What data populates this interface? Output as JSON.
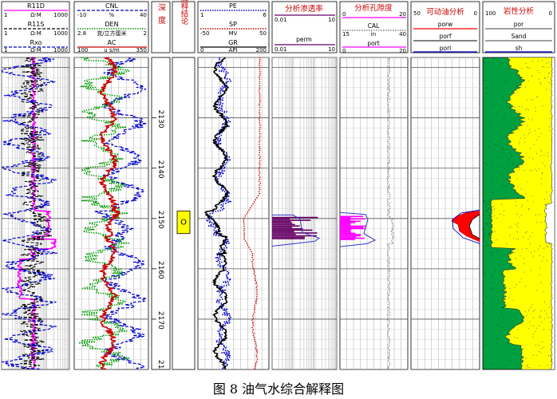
{
  "figure": {
    "caption": "图 8  油气水综合解释图"
  },
  "chart_data": {
    "type": "line",
    "depth": {
      "label": "深度",
      "min": 2118,
      "max": 2180,
      "ticks": [
        2130,
        2140,
        2150,
        2160,
        2170
      ],
      "bottom_partial_label": "21"
    },
    "tracks": [
      {
        "id": "resistivity",
        "curves": [
          {
            "name": "R11D",
            "left": "1",
            "unit": "Ω·M",
            "right": "1000",
            "color": "#ff00ff",
            "style": "solid"
          },
          {
            "name": "R11S",
            "left": "1",
            "unit": "Ω·M",
            "right": "1000",
            "color": "#000000",
            "style": "dashed"
          },
          {
            "name": "Rxo",
            "left": "1",
            "unit": "Ω·M",
            "right": "1000",
            "color": "#0000cc",
            "style": "dashed"
          }
        ]
      },
      {
        "id": "porosity_logs",
        "curves": [
          {
            "name": "CNL",
            "left": "-10",
            "unit": "%",
            "right": "40",
            "color": "#0000cc",
            "style": "dashed"
          },
          {
            "name": "DEN",
            "left": "2.8",
            "unit": "克/立方厘米",
            "right": "2",
            "color": "#009900",
            "style": "dotted"
          },
          {
            "name": "AC",
            "left": "100",
            "unit": "u s/m",
            "right": "350",
            "color": "#cc0000",
            "style": "solid"
          }
        ]
      },
      {
        "id": "depth",
        "label": "深度"
      },
      {
        "id": "interpretation",
        "label": "解释结论",
        "zones": [
          {
            "top": 2148.5,
            "bottom": 2153,
            "symbol": "O",
            "fill": "#ffff00"
          }
        ]
      },
      {
        "id": "lithology_logs",
        "curves": [
          {
            "name": "PE",
            "left": "1",
            "unit": "",
            "right": "6",
            "color": "#0000cc",
            "style": "dotted"
          },
          {
            "name": "SP",
            "left": "-50",
            "unit": "MV",
            "right": "50",
            "color": "#cc0000",
            "style": "dotted"
          },
          {
            "name": "GR",
            "left": "0",
            "unit": "API",
            "right": "200",
            "color": "#000000",
            "style": "solid"
          }
        ]
      },
      {
        "id": "permeability",
        "title": "分析渗透率",
        "curves": [
          {
            "name": "perm",
            "left": "0.01",
            "right": "10",
            "color": "#660066"
          }
        ]
      },
      {
        "id": "porosity",
        "title": "分析孔隙度",
        "curves": [
          {
            "name": "CAL",
            "left": "15",
            "unit": "in",
            "right": "40",
            "color": "#666666",
            "style": "dotted"
          },
          {
            "name": "port",
            "left": "0",
            "unit": "",
            "right": "20",
            "color": "#ff00ff"
          }
        ],
        "top_scale": {
          "left": "0",
          "right": "20"
        }
      },
      {
        "id": "movable_oil",
        "title": "可动油分析",
        "scale": {
          "left": "50",
          "right": "0"
        },
        "curves": [
          {
            "name": "porw",
            "color": "#ff0000"
          },
          {
            "name": "porf",
            "color": "#000000"
          },
          {
            "name": "porl",
            "color": "#0000cc"
          }
        ]
      },
      {
        "id": "lithology",
        "title": "岩性分析",
        "scale": {
          "left": "100",
          "right": "0"
        },
        "curves": [
          {
            "name": "por",
            "color": "#ffffff"
          },
          {
            "name": "Sand",
            "color": "#ffff00"
          },
          {
            "name": "sh",
            "color": "#00aa44"
          }
        ]
      }
    ]
  }
}
